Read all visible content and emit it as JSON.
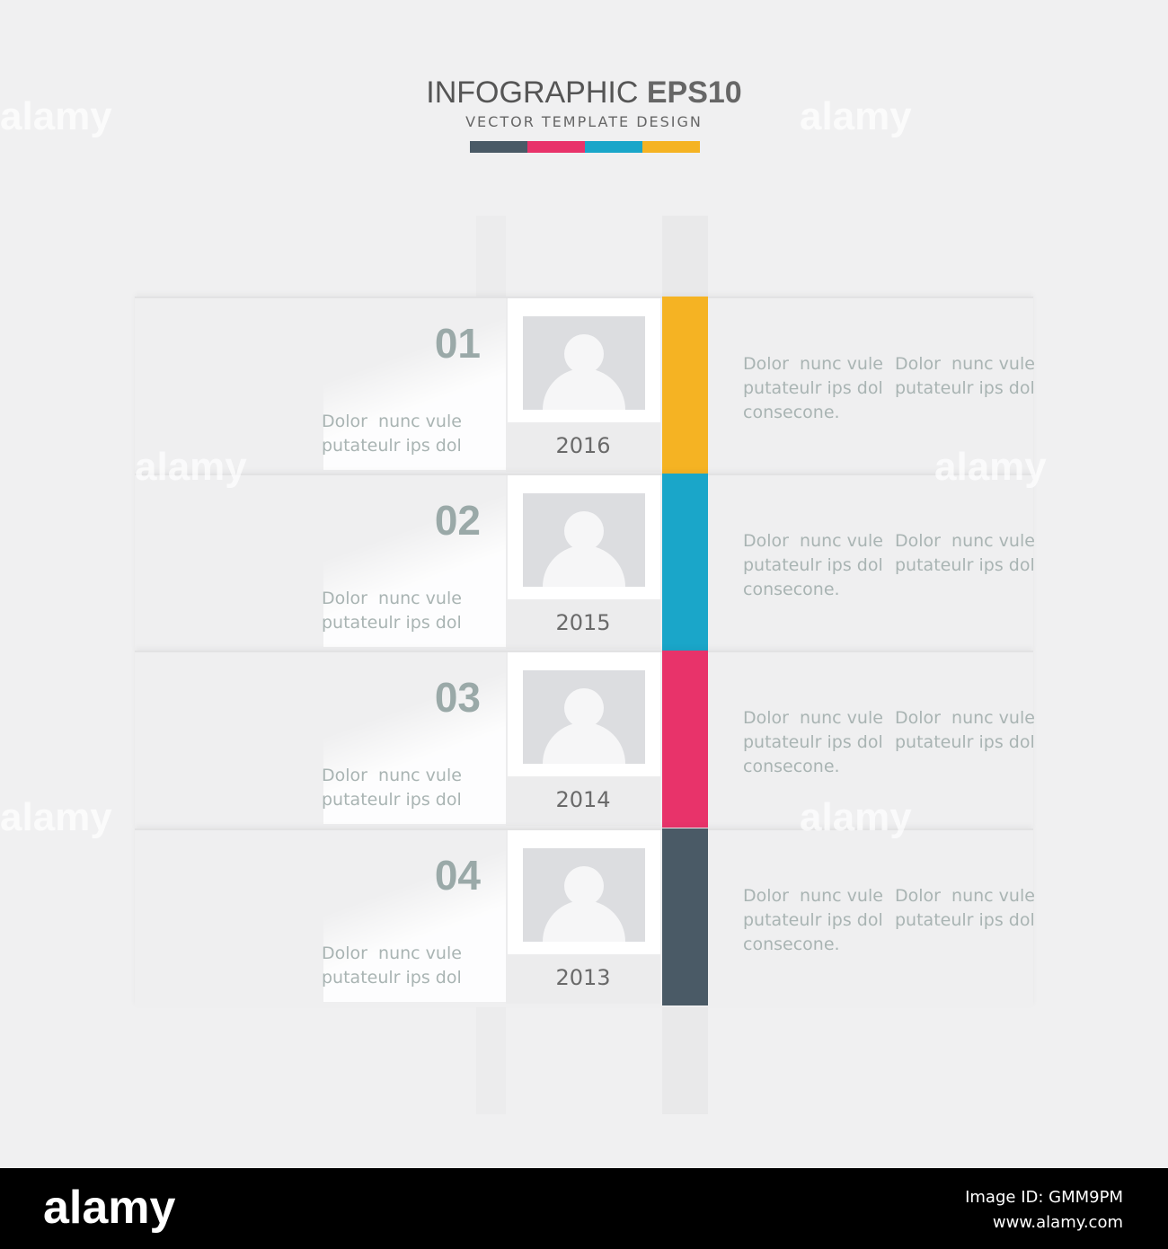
{
  "header": {
    "title_light": "INFOGRAPHIC",
    "title_bold": "EPS10",
    "subtitle": "VECTOR TEMPLATE DESIGN",
    "color_bar": [
      "#4a5a66",
      "#e8336a",
      "#1aa6c9",
      "#f5b323"
    ]
  },
  "items": [
    {
      "number": "01",
      "year": "2016",
      "color": "#f5b323",
      "left_text": [
        "Dolor  nunc vule",
        "putateulr ips dol"
      ],
      "right_text": [
        [
          "Dolor  nunc vule",
          "putateulr ips dol",
          "consecone."
        ],
        [
          "Dolor  nunc vule",
          "putateulr ips dol"
        ]
      ]
    },
    {
      "number": "02",
      "year": "2015",
      "color": "#1aa6c9",
      "left_text": [
        "Dolor  nunc vule",
        "putateulr ips dol"
      ],
      "right_text": [
        [
          "Dolor  nunc vule",
          "putateulr ips dol",
          "consecone."
        ],
        [
          "Dolor  nunc vule",
          "putateulr ips dol"
        ]
      ]
    },
    {
      "number": "03",
      "year": "2014",
      "color": "#e8336a",
      "left_text": [
        "Dolor  nunc vule",
        "putateulr ips dol"
      ],
      "right_text": [
        [
          "Dolor  nunc vule",
          "putateulr ips dol",
          "consecone."
        ],
        [
          "Dolor  nunc vule",
          "putateulr ips dol"
        ]
      ]
    },
    {
      "number": "04",
      "year": "2013",
      "color": "#4a5a66",
      "left_text": [
        "Dolor  nunc vule",
        "putateulr ips dol"
      ],
      "right_text": [
        [
          "Dolor  nunc vule",
          "putateulr ips dol",
          "consecone."
        ],
        [
          "Dolor  nunc vule",
          "putateulr ips dol"
        ]
      ]
    }
  ],
  "watermark": "alamy",
  "footer": {
    "logo": "alamy",
    "image_id": "Image ID: GMM9PM",
    "url": "www.alamy.com"
  }
}
